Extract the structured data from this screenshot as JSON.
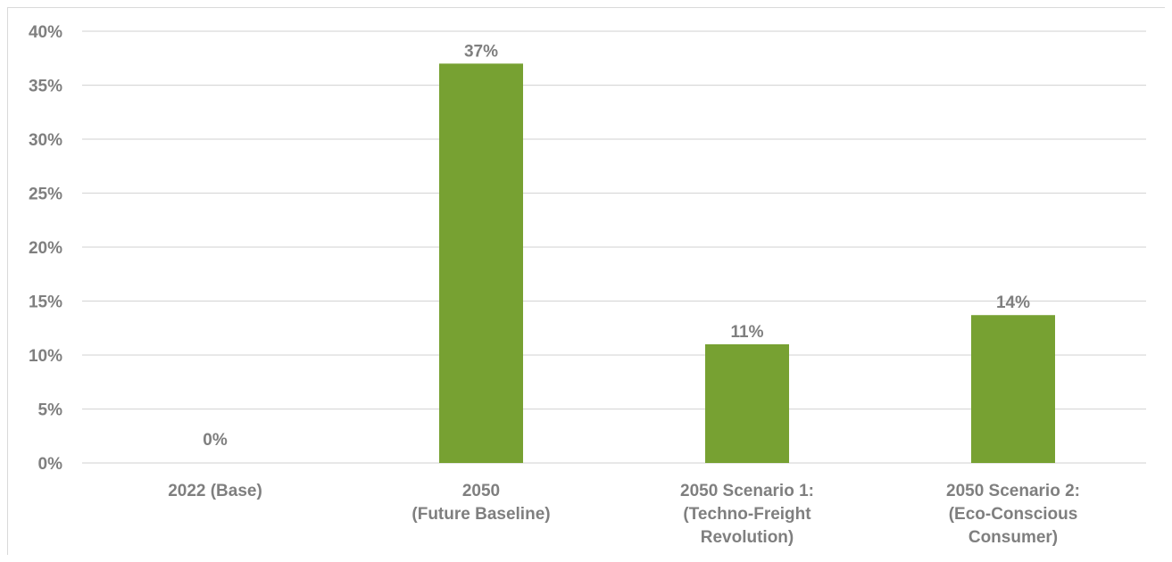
{
  "chart_data": {
    "type": "bar",
    "categories": [
      [
        "2022 (Base)"
      ],
      [
        "2050",
        "(Future Baseline)"
      ],
      [
        "2050 Scenario 1:",
        "(Techno-Freight",
        "Revolution)"
      ],
      [
        "2050 Scenario 2:",
        "(Eco-Conscious",
        "Consumer)"
      ]
    ],
    "values": [
      0,
      37,
      11,
      13.7
    ],
    "data_labels": [
      "0%",
      "37%",
      "11%",
      "14%"
    ],
    "y_ticks": [
      "0%",
      "5%",
      "10%",
      "15%",
      "20%",
      "25%",
      "30%",
      "35%",
      "40%"
    ],
    "ylim": [
      0,
      40
    ],
    "grid": true,
    "bar_color": "#77a132",
    "grid_color": "#d9d9d9",
    "text_color": "#7f7f7f"
  }
}
